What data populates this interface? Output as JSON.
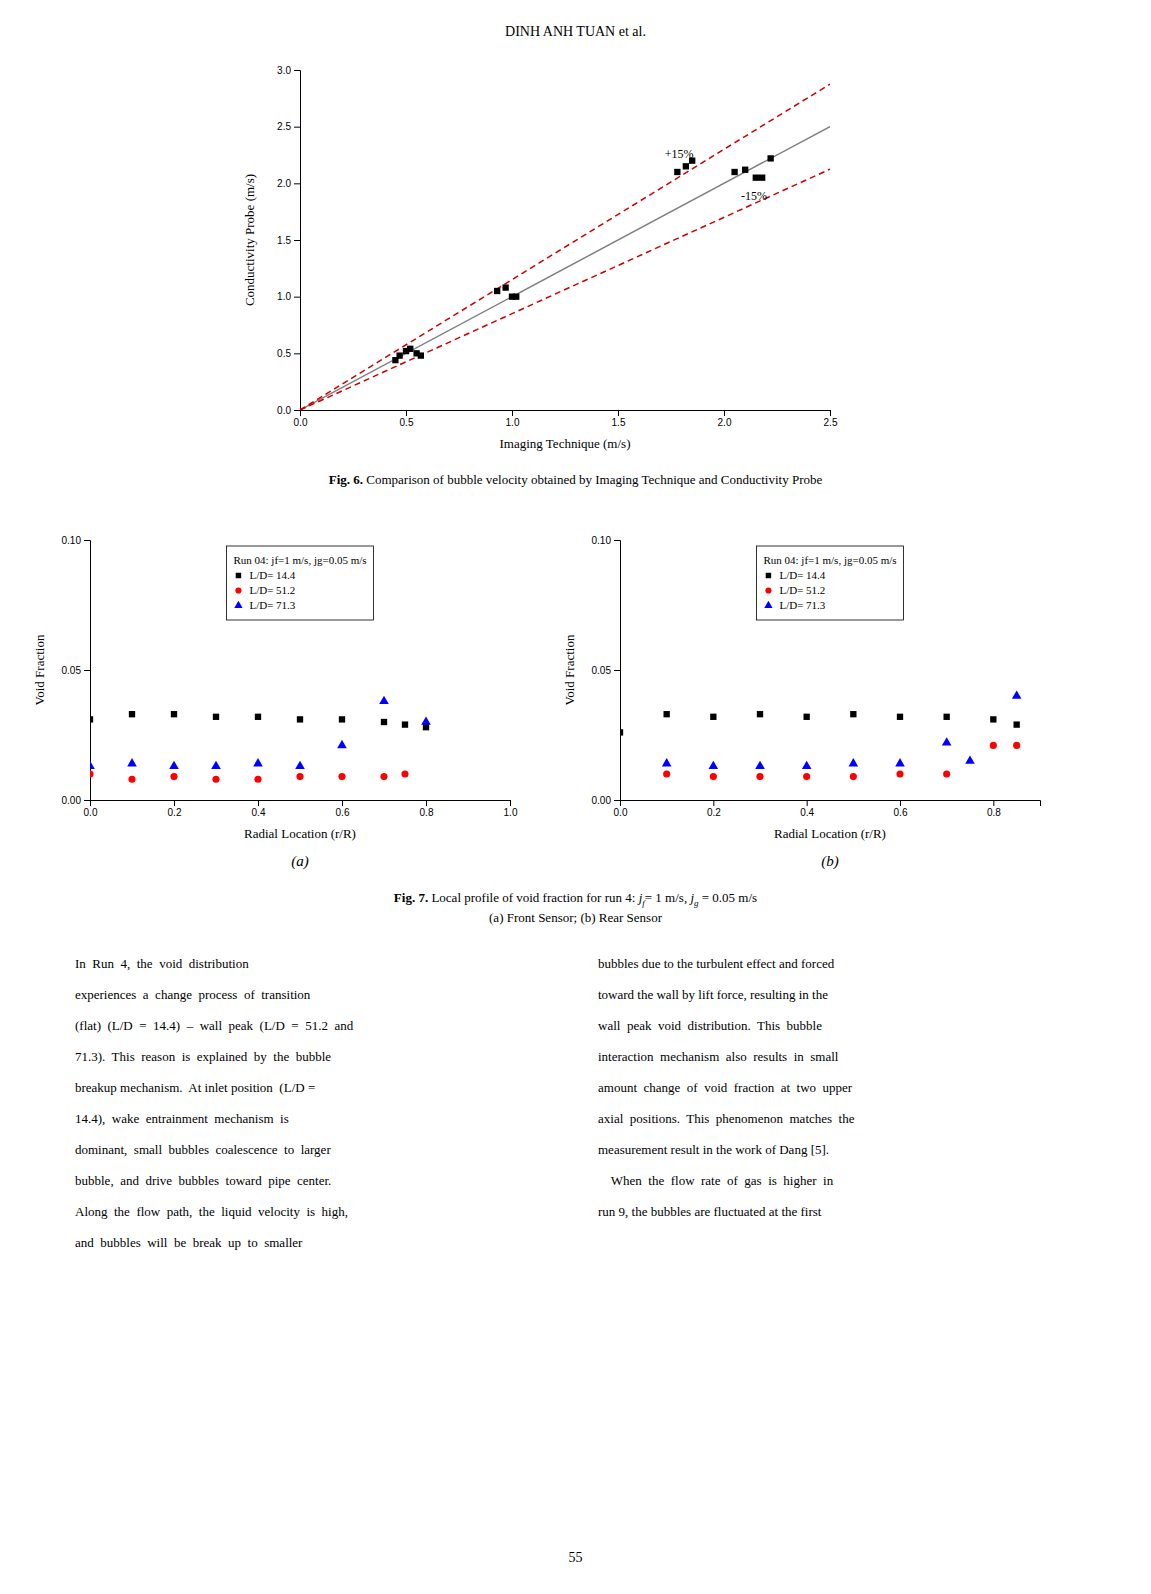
{
  "page_title": "DINH ANH TUAN et al.",
  "page_number": "55",
  "chart_data": [
    {
      "type": "scatter",
      "xlabel": "Imaging Technique (m/s)",
      "ylabel": "Conductivity Probe (m/s)",
      "xlim": [
        0.0,
        2.5
      ],
      "ylim": [
        0.0,
        3.0
      ],
      "xticks": [
        {
          "value": 0.0,
          "label": "0.0"
        },
        0.5,
        {
          "value": 1.0,
          "label": "1.0"
        },
        1.5,
        {
          "value": 2.0,
          "label": "2.0"
        },
        2.5
      ],
      "yticks": [
        {
          "value": 0.0,
          "label": "0.0"
        },
        0.5,
        {
          "value": 1.0,
          "label": "1.0"
        },
        1.5,
        {
          "value": 2.0,
          "label": "2.0"
        },
        2.5,
        {
          "value": 3.0,
          "label": "3.0"
        }
      ],
      "series": [
        {
          "type": "line",
          "x": [
            0,
            2.5
          ],
          "values": [
            0,
            2.5
          ],
          "color": "gray",
          "line_style": "solid"
        },
        {
          "type": "line",
          "x": [
            0,
            2.5
          ],
          "values": [
            0,
            2.875
          ],
          "color": "#cc0000",
          "line_style": "dashed"
        },
        {
          "type": "line",
          "x": [
            0,
            2.5
          ],
          "values": [
            0,
            2.125
          ],
          "color": "#cc0000",
          "line_style": "dashed"
        },
        {
          "type": "scatter",
          "x": [
            0.45,
            0.47,
            0.5,
            0.52,
            0.55,
            0.57,
            0.93,
            0.97,
            1.0,
            1.02,
            1.78,
            1.82,
            1.85,
            2.05,
            2.1,
            2.15,
            2.18,
            2.22
          ],
          "values": [
            0.44,
            0.48,
            0.52,
            0.54,
            0.5,
            0.48,
            1.05,
            1.08,
            1.0,
            1.0,
            2.1,
            2.15,
            2.2,
            2.1,
            2.12,
            2.05,
            2.05,
            2.22
          ],
          "color": "black",
          "marker": "square"
        }
      ],
      "annotations": [
        {
          "text": "+15%",
          "x": 1.72,
          "y": 2.22
        },
        {
          "text": "-15%",
          "x": 2.08,
          "y": 1.85
        }
      ]
    },
    {
      "type": "scatter",
      "subtitle": "(a)",
      "xlabel": "Radial Location (r/R)",
      "ylabel": "Void Fraction",
      "xlim": [
        0.0,
        1.0
      ],
      "ylim": [
        0.0,
        0.1
      ],
      "xticks": [
        {
          "value": 0.0,
          "label": "0.0"
        },
        0.2,
        0.4,
        0.6,
        0.8,
        {
          "value": 1.0,
          "label": "1.0"
        }
      ],
      "yticks": [
        {
          "value": 0.0,
          "label": "0.00"
        },
        0.05,
        {
          "value": 0.1,
          "label": "0.10"
        }
      ],
      "legend": "upper center",
      "legend_title": "Run 04: jf=1 m/s, jg=0.05 m/s",
      "series": [
        {
          "name": "L/D= 14.4",
          "color": "black",
          "marker": "square",
          "x": [
            0.0,
            0.1,
            0.2,
            0.3,
            0.4,
            0.5,
            0.6,
            0.7,
            0.75,
            0.8
          ],
          "values": [
            0.031,
            0.033,
            0.033,
            0.032,
            0.032,
            0.031,
            0.031,
            0.03,
            0.029,
            0.028
          ]
        },
        {
          "name": "L/D= 51.2",
          "color": "red",
          "marker": "circle",
          "x": [
            0.0,
            0.1,
            0.2,
            0.3,
            0.4,
            0.5,
            0.6,
            0.7,
            0.75
          ],
          "values": [
            0.01,
            0.008,
            0.009,
            0.008,
            0.008,
            0.009,
            0.009,
            0.009,
            0.01
          ]
        },
        {
          "name": "L/D= 71.3",
          "color": "blue",
          "marker": "triangle",
          "x": [
            0.0,
            0.1,
            0.2,
            0.3,
            0.4,
            0.5,
            0.6,
            0.7,
            0.8
          ],
          "values": [
            0.013,
            0.014,
            0.013,
            0.013,
            0.014,
            0.013,
            0.021,
            0.038,
            0.03
          ]
        }
      ]
    },
    {
      "type": "scatter",
      "subtitle": "(b)",
      "xlabel": "Radial Location (r/R)",
      "ylabel": "Void Fraction",
      "xlim": [
        0.0,
        0.9
      ],
      "ylim": [
        0.0,
        0.1
      ],
      "xticks": [
        {
          "value": 0.0,
          "label": "0.0"
        },
        0.2,
        0.4,
        0.6,
        0.8
      ],
      "yticks": [
        {
          "value": 0.0,
          "label": "0.00"
        },
        0.05,
        {
          "value": 0.1,
          "label": "0.10"
        }
      ],
      "legend": "upper center",
      "legend_title": "Run 04: jf=1 m/s, jg=0.05 m/s",
      "series": [
        {
          "name": "L/D= 14.4",
          "color": "black",
          "marker": "square",
          "x": [
            0.0,
            0.1,
            0.2,
            0.3,
            0.4,
            0.5,
            0.6,
            0.7,
            0.8,
            0.85
          ],
          "values": [
            0.026,
            0.033,
            0.032,
            0.033,
            0.032,
            0.033,
            0.032,
            0.032,
            0.031,
            0.029
          ]
        },
        {
          "name": "L/D= 51.2",
          "color": "red",
          "marker": "circle",
          "x": [
            0.1,
            0.2,
            0.3,
            0.4,
            0.5,
            0.6,
            0.7,
            0.8,
            0.85
          ],
          "values": [
            0.01,
            0.009,
            0.009,
            0.009,
            0.009,
            0.01,
            0.01,
            0.021,
            0.021
          ]
        },
        {
          "name": "L/D= 71.3",
          "color": "blue",
          "marker": "triangle",
          "x": [
            0.1,
            0.2,
            0.3,
            0.4,
            0.5,
            0.6,
            0.7,
            0.75,
            0.85
          ],
          "values": [
            0.014,
            0.013,
            0.013,
            0.013,
            0.014,
            0.014,
            0.022,
            0.015,
            0.04
          ]
        }
      ]
    }
  ],
  "captions": [
    [
      {
        "text": "Fig. 6.",
        "style": "bold"
      },
      {
        "text": " Comparison of bubble velocity obtained by Imaging Technique and Conductivity Probe",
        "style": "normal"
      }
    ],
    [
      {
        "text": "Fig. 7.",
        "style": "bold"
      },
      {
        "text": " Local profile of void fraction for run 4: ",
        "style": "normal"
      },
      {
        "text": "j",
        "style": "italic"
      },
      {
        "text": "f",
        "style": "subscript"
      },
      {
        "text": "= 1 m/s, ",
        "style": "normal"
      },
      {
        "text": "j",
        "style": "italic"
      },
      {
        "text": "g",
        "style": "subscript"
      },
      {
        "text": " = 0.05 m/s",
        "style": "normal"
      }
    ],
    [
      {
        "text": "(a) Front Sensor; (b) Rear Sensor",
        "style": "normal"
      }
    ]
  ],
  "col1_lines": [
    "In  Run  4,  the  void  distribution",
    "experiences  a  change  process  of  transition",
    "(flat)  (L/D  =  14.4)  –  wall  peak  (L/D  =  51.2  and",
    "71.3).  This  reason  is  explained  by  the  bubble",
    "breakup mechanism.  At inlet position  (L/D =",
    "14.4),  wake  entrainment  mechanism  is",
    "dominant,  small  bubbles  coalescence  to  larger",
    "bubble,  and  drive  bubbles  toward  pipe  center.",
    "Along  the  flow  path,  the  liquid  velocity  is  high,",
    "and  bubbles  will  be  break  up  to  smaller"
  ],
  "col2_lines": [
    "bubbles due to the turbulent effect and forced",
    "toward the wall by lift force, resulting in the",
    "wall  peak  void  distribution.  This  bubble",
    "interaction  mechanism  also  results  in  small",
    "amount  change  of  void  fraction  at  two  upper",
    "axial  positions.  This  phenomenon  matches  the",
    "measurement result in the work of Dang [5].",
    "    When  the  flow  rate  of  gas  is  higher  in",
    "run 9, the bubbles are fluctuated at the first"
  ]
}
